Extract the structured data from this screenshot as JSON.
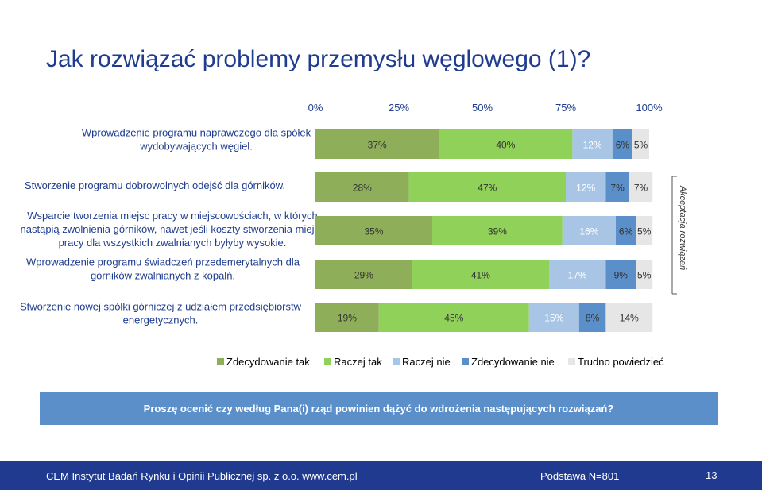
{
  "title": "Jak rozwiązać problemy przemysłu węglowego (1)?",
  "question": "Proszę ocenić czy według Pana(i) rząd powinien dążyć do wdrożenia następujących rozwiązań?",
  "side_label": "Akceptacja rozwiązań",
  "footer": {
    "institute": "CEM Instytut Badań Rynku i Opinii Publicznej sp. z o.o. www.cem.pl",
    "base": "Podstawa N=801",
    "page": "13"
  },
  "colors": {
    "title": "#1f3c8f",
    "zdecydowanie_tak": "#8fae5a",
    "raczej_tak": "#90d159",
    "raczej_nie": "#a9c5e6",
    "zdecydowanie_nie": "#5b8fc9",
    "trudno_powiedziec": "#e6e6e6",
    "question_box": "#5b8fc9",
    "footer": "#1f3a8f"
  },
  "chart_data": {
    "type": "bar",
    "orientation": "horizontal",
    "stacked": true,
    "xlim": [
      0,
      100
    ],
    "x_ticks": [
      "0%",
      "25%",
      "50%",
      "75%",
      "100%"
    ],
    "categories": [
      [
        "Wprowadzenie programu naprawczego dla spółek",
        "wydobywających węgiel."
      ],
      [
        "Stworzenie programu dobrowolnych odejść dla górników."
      ],
      [
        "Wsparcie tworzenia miejsc pracy w miejscowościach, w których",
        "nastąpią zwolnienia górników, nawet jeśli koszty stworzenia miejsc",
        "pracy dla wszystkich zwalnianych byłyby wysokie."
      ],
      [
        "Wprowadzenie programu świadczeń przedemerytalnych dla",
        "górników zwalnianych z kopalń."
      ],
      [
        "Stworzenie nowej spółki górniczej z udziałem przedsiębiorstw",
        "energetycznych."
      ]
    ],
    "series": [
      {
        "name": "Zdecydowanie tak",
        "color": "#8fae5a",
        "values": [
          37,
          28,
          35,
          29,
          19
        ]
      },
      {
        "name": "Raczej tak",
        "color": "#90d159",
        "values": [
          40,
          47,
          39,
          41,
          45
        ]
      },
      {
        "name": "Raczej nie",
        "color": "#a9c5e6",
        "values": [
          12,
          12,
          16,
          17,
          15
        ]
      },
      {
        "name": "Zdecydowanie nie",
        "color": "#5b8fc9",
        "values": [
          6,
          7,
          6,
          9,
          8
        ]
      },
      {
        "name": "Trudno powiedzieć",
        "color": "#e6e6e6",
        "values": [
          5,
          7,
          5,
          5,
          14
        ]
      }
    ],
    "legend_position": "bottom",
    "grid": false
  }
}
